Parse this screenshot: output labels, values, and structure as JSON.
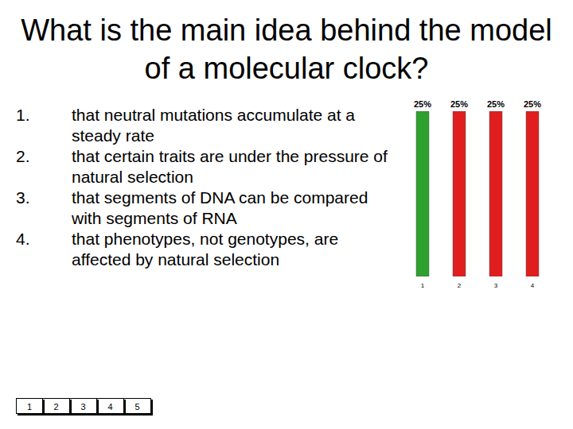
{
  "title": "What is the main idea behind the model of a molecular clock?",
  "options": [
    {
      "number": "1.",
      "text": "that neutral mutations accumulate at a steady rate"
    },
    {
      "number": "2.",
      "text": "that certain traits are under the pressure of natural selection"
    },
    {
      "number": "3.",
      "text": "that segments of DNA can be compared with segments of RNA"
    },
    {
      "number": "4.",
      "text": "that phenotypes, not genotypes, are affected by natural selection"
    }
  ],
  "chart_data": {
    "type": "bar",
    "categories": [
      "1",
      "2",
      "3",
      "4"
    ],
    "values": [
      25,
      25,
      25,
      25
    ],
    "value_labels": [
      "25%",
      "25%",
      "25%",
      "25%"
    ],
    "colors": [
      "#2ea02e",
      "#e01e1e",
      "#e01e1e",
      "#e01e1e"
    ],
    "ylim": [
      0,
      25
    ],
    "data_labels": true,
    "tick_labels": "x"
  },
  "counter": [
    1,
    2,
    3,
    4,
    5
  ]
}
